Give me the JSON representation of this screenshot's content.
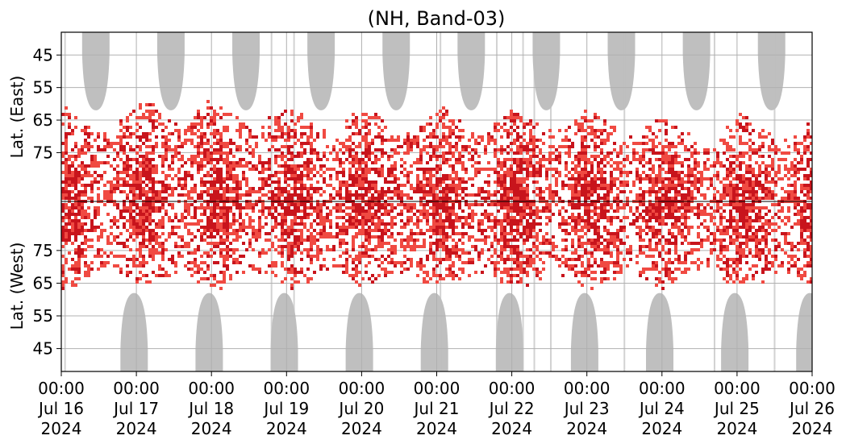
{
  "chart_data": {
    "type": "heatmap",
    "title": "(NH, Band-03)",
    "ylabel_upper": "Lat. (East)",
    "ylabel_lower": "Lat. (West)",
    "x_ticks": [
      {
        "line1": "00:00",
        "line2": "Jul 16",
        "line3": "2024"
      },
      {
        "line1": "00:00",
        "line2": "Jul 17",
        "line3": "2024"
      },
      {
        "line1": "00:00",
        "line2": "Jul 18",
        "line3": "2024"
      },
      {
        "line1": "00:00",
        "line2": "Jul 19",
        "line3": "2024"
      },
      {
        "line1": "00:00",
        "line2": "Jul 20",
        "line3": "2024"
      },
      {
        "line1": "00:00",
        "line2": "Jul 21",
        "line3": "2024"
      },
      {
        "line1": "00:00",
        "line2": "Jul 22",
        "line3": "2024"
      },
      {
        "line1": "00:00",
        "line2": "Jul 23",
        "line3": "2024"
      },
      {
        "line1": "00:00",
        "line2": "Jul 24",
        "line3": "2024"
      },
      {
        "line1": "00:00",
        "line2": "Jul 25",
        "line3": "2024"
      },
      {
        "line1": "00:00",
        "line2": "Jul 26",
        "line3": "2024"
      }
    ],
    "x_range": [
      "2024-07-16 00:00",
      "2024-07-26 00:00"
    ],
    "y_ticks_upper": [
      "45",
      "55",
      "65",
      "75"
    ],
    "y_ticks_lower": [
      "75",
      "65",
      "55",
      "45"
    ],
    "upper_lat_range": [
      38,
      90
    ],
    "lower_lat_range": [
      90,
      38
    ],
    "grid": true,
    "colors": {
      "strong": "#c8141c",
      "weak": "#f04a42",
      "coverage_gap": "#bfbfbf",
      "grid": "#b0b0b0"
    },
    "gray_upper_days": [
      0.46,
      1.46,
      2.46,
      3.46,
      4.46,
      5.46,
      6.46,
      7.46,
      8.46,
      9.46
    ],
    "gray_lower_days": [
      0.97,
      1.97,
      2.97,
      3.97,
      4.97,
      5.97,
      6.97,
      7.97,
      8.97,
      9.97
    ],
    "activity_daily_center_lat": [
      72,
      70,
      71,
      72,
      73,
      72,
      72,
      74,
      76,
      75
    ],
    "activity_days_range": [
      0,
      10
    ]
  }
}
